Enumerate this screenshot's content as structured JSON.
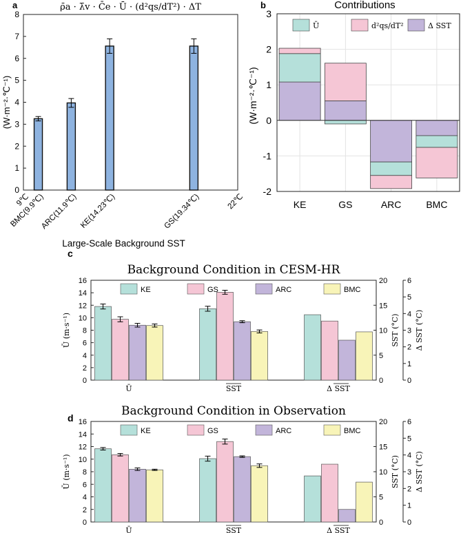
{
  "chart_data": [
    {
      "panel": "a",
      "type": "bar",
      "title": "ρ̄a · λ̄v · C̄e · Ū · (d²qs/dT²) · ΔT",
      "ylabel": "(W·m⁻²·℃⁻¹)",
      "xlabel": "Large-Scale Background SST",
      "ylim": [
        0,
        8
      ],
      "yticks": [
        0,
        1,
        2,
        3,
        4,
        5,
        6,
        7,
        8
      ],
      "xlim": [
        9,
        22
      ],
      "x_end_labels": [
        "9℃",
        "22℃"
      ],
      "categories": [
        "BMC(9.9℃)",
        "ARC(11.9℃)",
        "KE(14.23℃)",
        "GS(19.34℃)"
      ],
      "x": [
        9.9,
        11.9,
        14.23,
        19.34
      ],
      "values": [
        3.25,
        3.97,
        6.56,
        6.56
      ],
      "errors": [
        0.1,
        0.2,
        0.33,
        0.33
      ],
      "color": "#8eb3e0"
    },
    {
      "panel": "b",
      "type": "bar",
      "stacked": true,
      "title": "Contributions",
      "ylabel": "(W·m⁻²·℃⁻¹)",
      "ylim": [
        -2,
        3
      ],
      "yticks": [
        -2,
        -1,
        0,
        1,
        2,
        3
      ],
      "categories": [
        "KE",
        "GS",
        "ARC",
        "BMC"
      ],
      "series": [
        {
          "name": "Ū",
          "color": "#b5e0da",
          "values": [
            0.8,
            -0.1,
            -0.38,
            -0.33
          ]
        },
        {
          "name": "d²qs/dT²",
          "color": "#f5c6d5",
          "values": [
            0.15,
            1.06,
            -0.37,
            -0.86
          ]
        },
        {
          "name": "Δ SST",
          "color": "#c2b5da",
          "values": [
            1.08,
            0.55,
            -1.17,
            -0.43
          ]
        }
      ],
      "legend_labels": [
        "Ū",
        "d²qs/dT²",
        "Δ SST"
      ]
    },
    {
      "panel": "c",
      "type": "bar",
      "title": "Background Condition in CESM-HR",
      "groups": [
        "Ū",
        "SST",
        "Δ SST"
      ],
      "ylabel_left": "Ū (m·s⁻¹)",
      "ylabel_right1": "SST (°C)",
      "ylabel_right2": "Δ SST (°C)",
      "ylim_left": [
        0,
        16
      ],
      "yticks_left": [
        0,
        2,
        4,
        6,
        8,
        10,
        12,
        14,
        16
      ],
      "ylim_right1": [
        0,
        20
      ],
      "yticks_right1": [
        0,
        5,
        10,
        15,
        20
      ],
      "ylim_right2": [
        0,
        6
      ],
      "yticks_right2": [
        0,
        1,
        2,
        3,
        4,
        5,
        6
      ],
      "series": [
        {
          "name": "KE",
          "color": "#b5e0da",
          "U": 11.8,
          "U_err": 0.4,
          "SST": 14.3,
          "SST_err": 0.5,
          "dSST": 3.93
        },
        {
          "name": "GS",
          "color": "#f5c6d5",
          "U": 9.75,
          "U_err": 0.4,
          "SST": 17.6,
          "SST_err": 0.4,
          "dSST": 3.55
        },
        {
          "name": "ARC",
          "color": "#c2b5da",
          "U": 8.8,
          "U_err": 0.3,
          "SST": 11.7,
          "SST_err": 0.2,
          "dSST": 2.4
        },
        {
          "name": "BMC",
          "color": "#f8f4b8",
          "U": 8.75,
          "U_err": 0.25,
          "SST": 9.75,
          "SST_err": 0.3,
          "dSST": 2.9
        }
      ]
    },
    {
      "panel": "d",
      "type": "bar",
      "title": "Background Condition in Observation",
      "groups": [
        "Ū",
        "SST",
        "Δ SST"
      ],
      "ylabel_left": "Ū (m·s⁻¹)",
      "ylabel_right1": "SST (°C)",
      "ylabel_right2": "Δ SST (°C)",
      "ylim_left": [
        0,
        16
      ],
      "yticks_left": [
        0,
        2,
        4,
        6,
        8,
        10,
        12,
        14,
        16
      ],
      "ylim_right1": [
        0,
        20
      ],
      "yticks_right1": [
        0,
        5,
        10,
        15,
        20
      ],
      "ylim_right2": [
        0,
        6
      ],
      "yticks_right2": [
        0,
        1,
        2,
        3,
        4,
        5,
        6
      ],
      "series": [
        {
          "name": "KE",
          "color": "#b5e0da",
          "U": 11.65,
          "U_err": 0.2,
          "SST": 12.6,
          "SST_err": 0.5,
          "dSST": 2.75
        },
        {
          "name": "GS",
          "color": "#f5c6d5",
          "U": 10.7,
          "U_err": 0.2,
          "SST": 16.0,
          "SST_err": 0.5,
          "dSST": 3.45
        },
        {
          "name": "ARC",
          "color": "#c2b5da",
          "U": 8.4,
          "U_err": 0.2,
          "SST": 13.0,
          "SST_err": 0.15,
          "dSST": 0.75
        },
        {
          "name": "BMC",
          "color": "#f8f4b8",
          "U": 8.3,
          "U_err": 0.1,
          "SST": 11.2,
          "SST_err": 0.35,
          "dSST": 2.38
        }
      ]
    }
  ],
  "labels": {
    "a": "a",
    "b": "b",
    "c": "c",
    "d": "d"
  }
}
